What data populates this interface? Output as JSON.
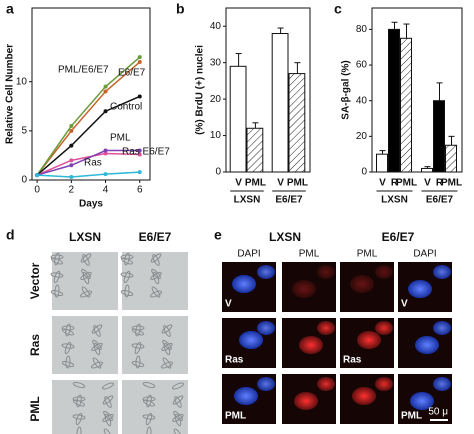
{
  "chart_data": [
    {
      "type": "line",
      "panel": "a",
      "xlabel": "Days",
      "ylabel": "Relative Cell Number",
      "x": [
        0,
        2,
        4,
        6
      ],
      "xlim": [
        -0.3,
        6.6
      ],
      "xticks": [
        0,
        2,
        4,
        6
      ],
      "ylim": [
        0,
        17.5
      ],
      "yticks": [
        0,
        5,
        10
      ],
      "series": [
        {
          "name": "PML/E6/E7",
          "color": "#c8642a",
          "values": [
            0.5,
            5,
            9,
            12
          ]
        },
        {
          "name": "E6/E7",
          "color": "#6a9a3a",
          "values": [
            0.5,
            5.5,
            9.5,
            12.5
          ]
        },
        {
          "name": "Control",
          "color": "#111111",
          "values": [
            0.5,
            3.5,
            7,
            8.5
          ]
        },
        {
          "name": "PML",
          "color": "#e0509a",
          "values": [
            0.5,
            2,
            2.7,
            2.6
          ]
        },
        {
          "name": "Ras",
          "color": "#8040b0",
          "values": [
            0.5,
            1.5,
            3,
            3
          ]
        },
        {
          "name": "Ras E6/E7",
          "color": "#30b8d8",
          "values": [
            0.5,
            0.3,
            0.6,
            0.8
          ]
        }
      ]
    },
    {
      "type": "bar",
      "panel": "b",
      "ylabel": "(%) BrdU (+) nuclei",
      "categories": [
        "LXSN",
        "E6/E7"
      ],
      "ylim": [
        0,
        45
      ],
      "yticks": [
        0,
        10,
        20,
        30,
        40
      ],
      "series": [
        {
          "name": "V",
          "color": "#ffffff",
          "values": [
            29,
            38
          ],
          "errors": [
            3.5,
            1.5
          ]
        },
        {
          "name": "PML",
          "color": "#ffffff",
          "pattern": "hatch",
          "values": [
            12,
            27
          ],
          "errors": [
            1.5,
            3
          ]
        }
      ]
    },
    {
      "type": "bar",
      "panel": "c",
      "ylabel": "SA-β-gal (%)",
      "categories": [
        "LXSN",
        "E6/E7"
      ],
      "ylim": [
        0,
        92
      ],
      "yticks": [
        0,
        20,
        40,
        60,
        80
      ],
      "series": [
        {
          "name": "V",
          "color": "#ffffff",
          "values": [
            10,
            2
          ],
          "errors": [
            2,
            1
          ]
        },
        {
          "name": "R",
          "color": "#000000",
          "values": [
            80,
            40
          ],
          "errors": [
            4,
            10
          ]
        },
        {
          "name": "PML",
          "color": "#ffffff",
          "pattern": "hatch",
          "values": [
            75,
            15
          ],
          "errors": [
            8,
            5
          ]
        }
      ]
    }
  ],
  "panels": {
    "d": {
      "label": "d",
      "columns": [
        "LXSN",
        "E6/E7"
      ],
      "rows": [
        "Vector",
        "Ras",
        "PML"
      ]
    },
    "e": {
      "label": "e",
      "columns": [
        "LXSN",
        "E6/E7"
      ],
      "subcolumns": [
        "DAPI",
        "PML",
        "PML",
        "DAPI"
      ],
      "image_labels": [
        "V",
        "V",
        "Ras",
        "Ras",
        "PML",
        "PML"
      ],
      "scale": "50 μ"
    }
  }
}
